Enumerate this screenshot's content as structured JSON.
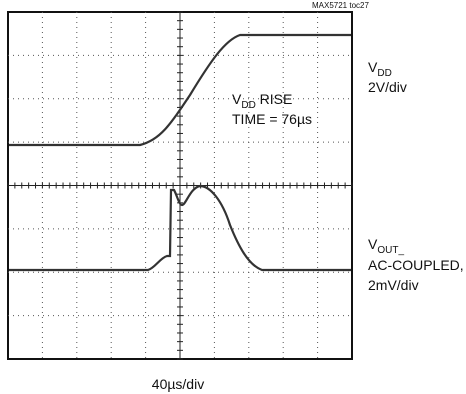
{
  "figure_id": "MAX5721 toc27",
  "channel_1": {
    "symbol": "V",
    "subscript": "DD",
    "scale": "2V/div"
  },
  "annotation": {
    "line_1_symbol": "V",
    "line_1_subscript": "DD",
    "line_1_rest": " RISE",
    "line_2": "TIME = 76µs"
  },
  "channel_2": {
    "symbol": "V",
    "subscript": "OUT_",
    "coupling": "AC-COUPLED,",
    "scale": "2mV/div"
  },
  "time_scale": "40µs/div"
}
